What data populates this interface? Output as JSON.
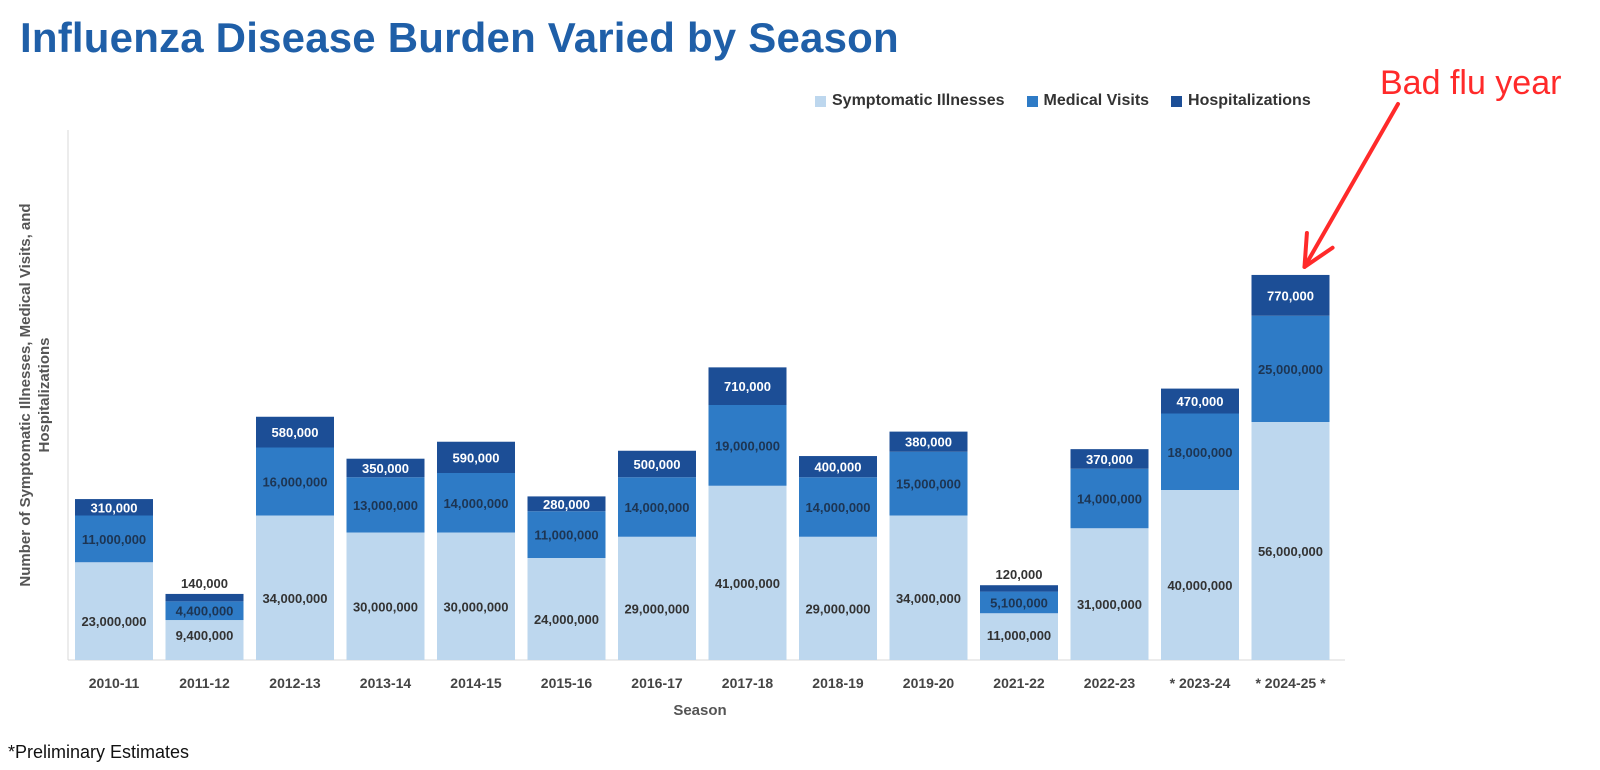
{
  "title": "Influenza Disease Burden Varied by Season",
  "footnote": "*Preliminary Estimates",
  "annotation": {
    "text": "Bad flu year",
    "target": "2024-25",
    "color": "#ff2a2a"
  },
  "colors": {
    "symptomatic": "#bdd7ee",
    "medical": "#2e7bc6",
    "hospital": "#1c4e96",
    "title": "#1f5fa8"
  },
  "chart_data": {
    "type": "bar",
    "stacked": true,
    "title": "Influenza Disease Burden Varied by Season",
    "xlabel": "Season",
    "ylabel": "Number of Symptomatic Illnesses, Medical Visits, and Hospitalizations",
    "legend_position": "top-right",
    "categories": [
      "2010-11",
      "2011-12",
      "2012-13",
      "2013-14",
      "2014-15",
      "2015-16",
      "2016-17",
      "2017-18",
      "2018-19",
      "2019-20",
      "2021-22",
      "2022-23",
      "2023-24",
      "2024-25"
    ],
    "category_labels": [
      "2010-11",
      "2011-12",
      "2012-13",
      "2013-14",
      "2014-15",
      "2015-16",
      "2016-17",
      "2017-18",
      "2018-19",
      "2019-20",
      "2021-22",
      "2022-23",
      "* 2023-24",
      "* 2024-25 *"
    ],
    "preliminary": [
      "2023-24",
      "2024-25"
    ],
    "series": [
      {
        "name": "Symptomatic Illnesses",
        "key": "symptomatic",
        "values": [
          23000000,
          9400000,
          34000000,
          30000000,
          30000000,
          24000000,
          29000000,
          41000000,
          29000000,
          34000000,
          11000000,
          31000000,
          40000000,
          56000000
        ],
        "labels": [
          "23,000,000",
          "9,400,000",
          "34,000,000",
          "30,000,000",
          "30,000,000",
          "24,000,000",
          "29,000,000",
          "41,000,000",
          "29,000,000",
          "34,000,000",
          "11,000,000",
          "31,000,000",
          "40,000,000",
          "56,000,000"
        ]
      },
      {
        "name": "Medical Visits",
        "key": "medical",
        "values": [
          11000000,
          4400000,
          16000000,
          13000000,
          14000000,
          11000000,
          14000000,
          19000000,
          14000000,
          15000000,
          5100000,
          14000000,
          18000000,
          25000000
        ],
        "labels": [
          "11,000,000",
          "4,400,000",
          "16,000,000",
          "13,000,000",
          "14,000,000",
          "11,000,000",
          "14,000,000",
          "19,000,000",
          "14,000,000",
          "15,000,000",
          "5,100,000",
          "14,000,000",
          "18,000,000",
          "25,000,000"
        ]
      },
      {
        "name": "Hospitalizations",
        "key": "hospital",
        "values": [
          310000,
          140000,
          580000,
          350000,
          590000,
          280000,
          500000,
          710000,
          400000,
          380000,
          120000,
          370000,
          470000,
          770000
        ],
        "labels": [
          "310,000",
          "140,000",
          "580,000",
          "350,000",
          "590,000",
          "280,000",
          "500,000",
          "710,000",
          "400,000",
          "380,000",
          "120,000",
          "370,000",
          "470,000",
          "770,000"
        ]
      }
    ],
    "visual_hospital_band": [
      310000,
      140000,
      580000,
      350000,
      590000,
      280000,
      500000,
      710000,
      400000,
      380000,
      120000,
      370000,
      470000,
      770000
    ]
  }
}
